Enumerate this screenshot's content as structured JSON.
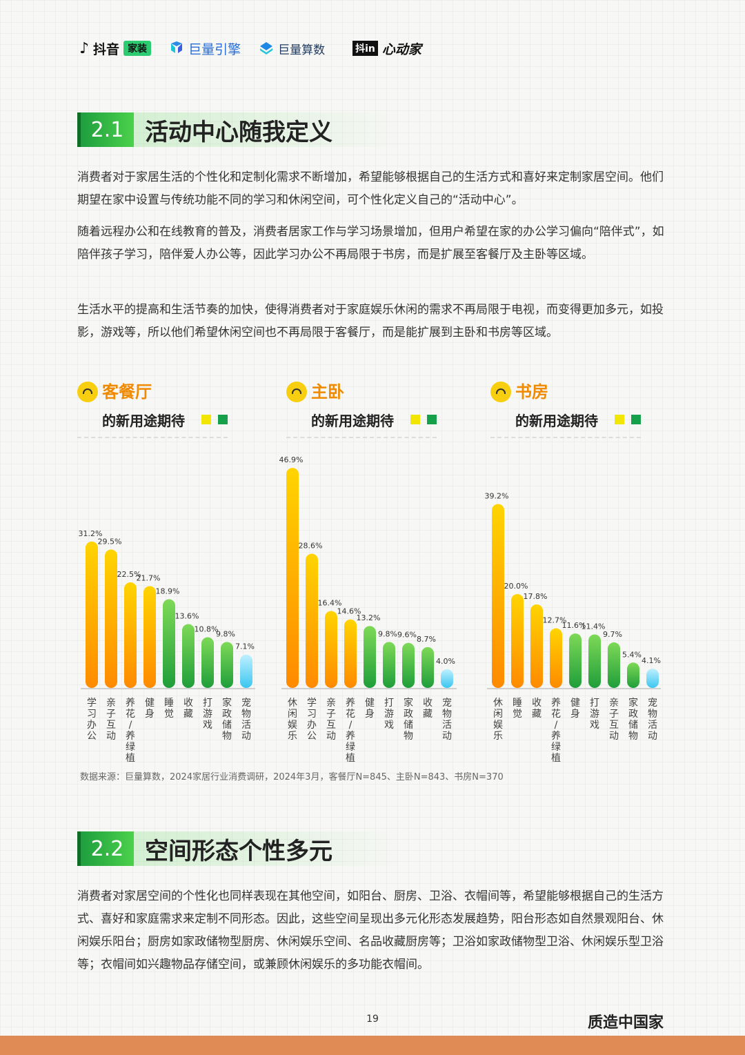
{
  "logos": [
    "抖音",
    "家装",
    "巨量引擎",
    "巨量算数",
    "抖in",
    "心动家"
  ],
  "section1": {
    "number": "2.1",
    "title": "活动中心随我定义",
    "paragraphs": [
      "消费者对于家居生活的个性化和定制化需求不断增加，希望能够根据自己的生活方式和喜好来定制家居空间。他们期望在家中设置与传统功能不同的学习和休闲空间，可个性化定义自己的“活动中心”。",
      "随着远程办公和在线教育的普及，消费者居家工作与学习场景增加，但用户希望在家的办公学习偏向“陪伴式”，如陪伴孩子学习，陪伴爱人办公等，因此学习办公不再局限于书房，而是扩展至客餐厅及主卧等区域。",
      "生活水平的提高和生活节奏的加快，使得消费者对于家庭娱乐休闲的需求不再局限于电视，而变得更加多元，如投影，游戏等，所以他们希望休闲空间也不再局限于客餐厅，而是能扩展到主卧和书房等区域。"
    ]
  },
  "chart_data": [
    {
      "type": "bar",
      "title": "客餐厅",
      "subtitle": "的新用途期待",
      "categories": [
        "学习办公",
        "亲子互动",
        "养花/养绿植",
        "健身",
        "睡觉",
        "收藏",
        "打游戏",
        "家政储物",
        "宠物活动"
      ],
      "values": [
        31.2,
        29.5,
        22.5,
        21.7,
        18.9,
        13.6,
        10.8,
        9.8,
        7.1
      ],
      "labels": [
        "31.2%",
        "29.5%",
        "22.5%",
        "21.7%",
        "18.9%",
        "13.6%",
        "10.8%",
        "9.8%",
        "7.1%"
      ],
      "colors": [
        "orange",
        "orange",
        "orange",
        "orange",
        "green",
        "green",
        "green",
        "green",
        "blue"
      ],
      "ylim": [
        0,
        50
      ]
    },
    {
      "type": "bar",
      "title": "主卧",
      "subtitle": "的新用途期待",
      "categories": [
        "休闲娱乐",
        "学习办公",
        "亲子互动",
        "养花/养绿植",
        "健身",
        "打游戏",
        "家政储物",
        "收藏",
        "宠物活动"
      ],
      "values": [
        46.9,
        28.6,
        16.4,
        14.6,
        13.2,
        9.8,
        9.6,
        8.7,
        4.0
      ],
      "labels": [
        "46.9%",
        "28.6%",
        "16.4%",
        "14.6%",
        "13.2%",
        "9.8%",
        "9.6%",
        "8.7%",
        "4.0%"
      ],
      "colors": [
        "orange",
        "orange",
        "orange",
        "orange",
        "green",
        "green",
        "green",
        "green",
        "blue"
      ],
      "ylim": [
        0,
        50
      ]
    },
    {
      "type": "bar",
      "title": "书房",
      "subtitle": "的新用途期待",
      "categories": [
        "休闲娱乐",
        "睡觉",
        "收藏",
        "养花/养绿植",
        "健身",
        "打游戏",
        "亲子互动",
        "家政储物",
        "宠物活动"
      ],
      "values": [
        39.2,
        20.0,
        17.8,
        12.7,
        11.6,
        11.4,
        9.7,
        5.4,
        4.1
      ],
      "labels": [
        "39.2%",
        "20.0%",
        "17.8%",
        "12.7%",
        "11.6%",
        "11.4%",
        "9.7%",
        "5.4%",
        "4.1%"
      ],
      "colors": [
        "orange",
        "orange",
        "orange",
        "orange",
        "green",
        "green",
        "green",
        "green",
        "blue"
      ],
      "ylim": [
        0,
        50
      ]
    }
  ],
  "source": "数据来源：巨量算数，2024家居行业消费调研，2024年3月，客餐厅N=845、主卧N=843、书房N=370",
  "section2": {
    "number": "2.2",
    "title": "空间形态个性多元",
    "paragraph": "消费者对家居空间的个性化也同样表现在其他空间，如阳台、厨房、卫浴、衣帽间等，希望能够根据自己的生活方式、喜好和家庭需求来定制不同形态。因此，这些空间呈现出多元化形态发展趋势，阳台形态如自然景观阳台、休闲娱乐阳台；厨房如家政储物型厨房、休闲娱乐空间、名品收藏厨房等；卫浴如家政储物型卫浴、休闲娱乐型卫浴等；衣帽间如兴趣物品存储空间，或兼顾休闲娱乐的多功能衣帽间。"
  },
  "page_number": "19",
  "brand": "质造中国家",
  "colors": {
    "orange_top": "#ffd400",
    "orange_bottom": "#ff8a00",
    "green_top": "#7ed957",
    "green_bottom": "#1f9e3a",
    "blue_top": "#bff0ff",
    "blue_bottom": "#3cc6f0",
    "accent": "#f08a00",
    "square_yellow": "#f2e600",
    "square_green": "#15a04a"
  }
}
